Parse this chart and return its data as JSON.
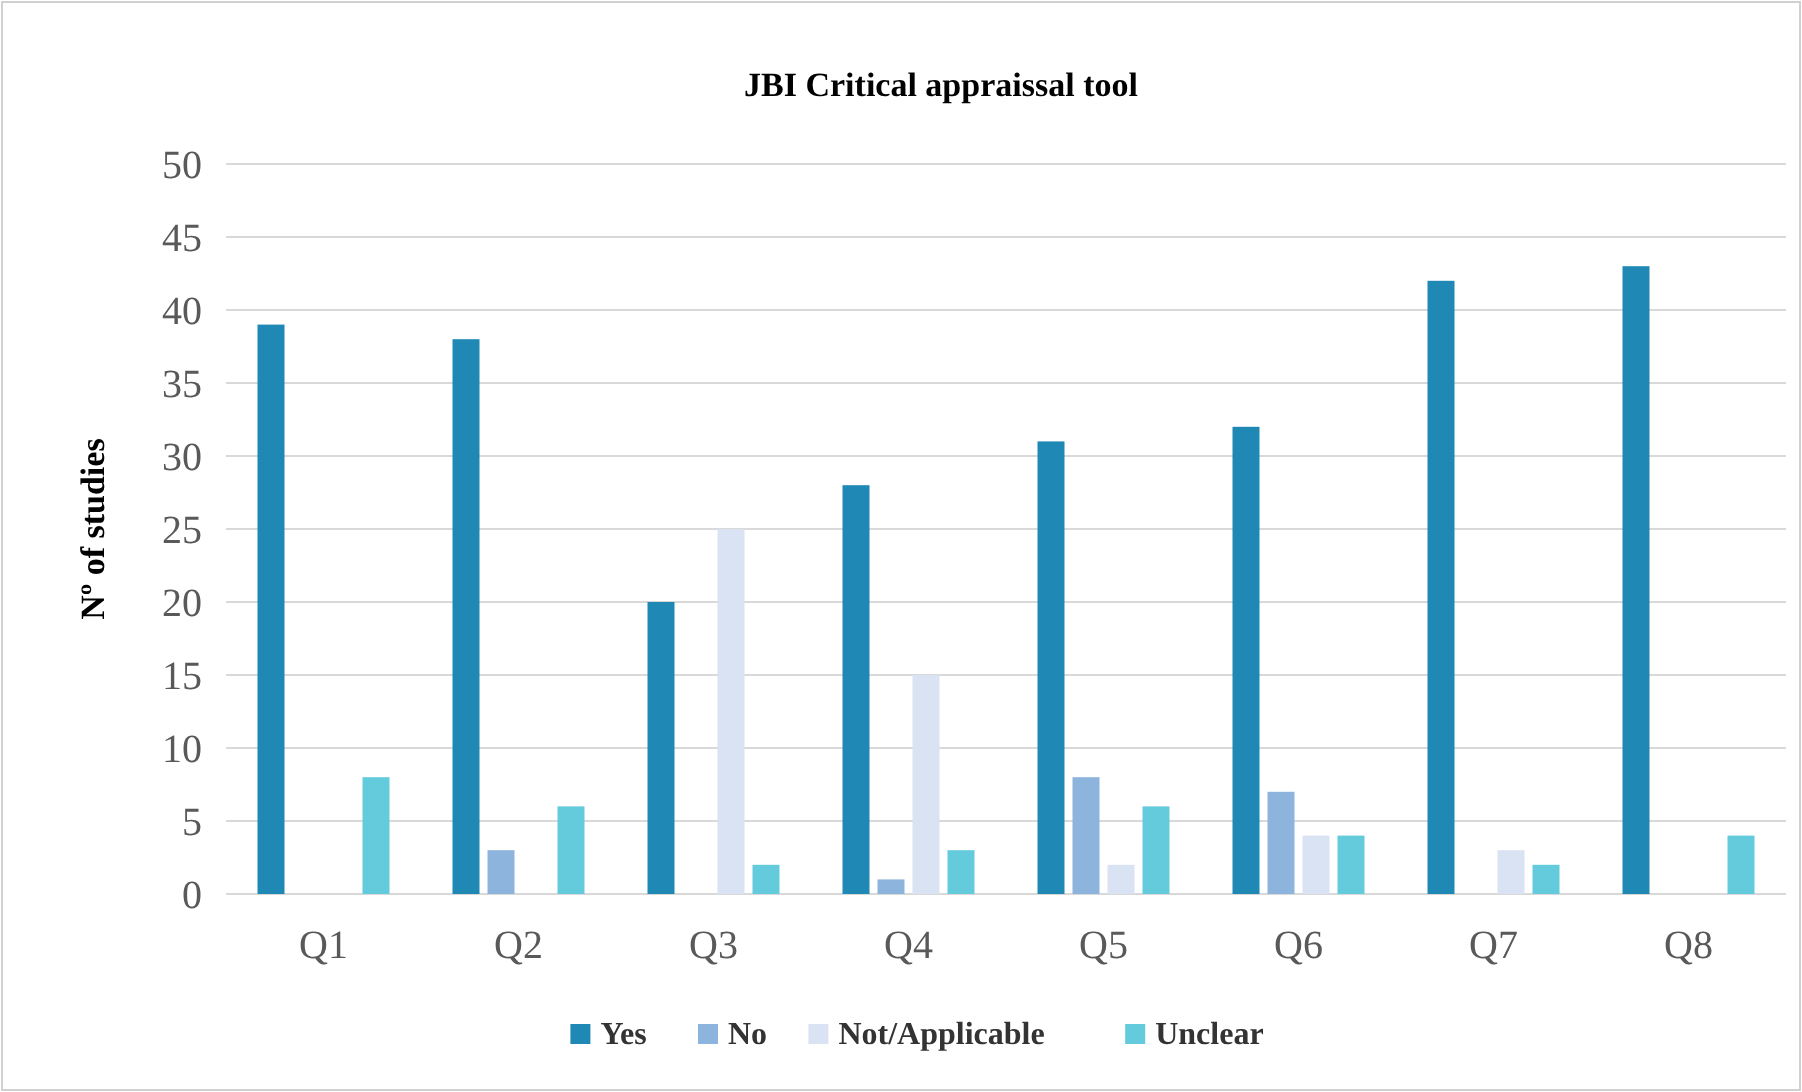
{
  "chart_data": {
    "type": "bar",
    "title": "JBI Critical appraissal tool",
    "ylabel": "Nº of studies",
    "categories": [
      "Q1",
      "Q2",
      "Q3",
      "Q4",
      "Q5",
      "Q6",
      "Q7",
      "Q8"
    ],
    "series": [
      {
        "name": "Yes",
        "color": "#1f88b5",
        "values": [
          39,
          38,
          20,
          28,
          31,
          32,
          42,
          43
        ]
      },
      {
        "name": "No",
        "color": "#8db4dc",
        "values": [
          0,
          3,
          0,
          1,
          8,
          7,
          0,
          0
        ]
      },
      {
        "name": "Not/Applicable",
        "color": "#dae3f3",
        "values": [
          0,
          0,
          25,
          15,
          2,
          4,
          3,
          0
        ]
      },
      {
        "name": "Unclear",
        "color": "#63cbdc",
        "values": [
          8,
          6,
          2,
          3,
          6,
          4,
          2,
          4
        ]
      }
    ],
    "ylim": [
      0,
      50
    ],
    "yticks": [
      0,
      5,
      10,
      15,
      20,
      25,
      30,
      35,
      40,
      45,
      50
    ],
    "grid": "y",
    "legend": "bottom"
  }
}
